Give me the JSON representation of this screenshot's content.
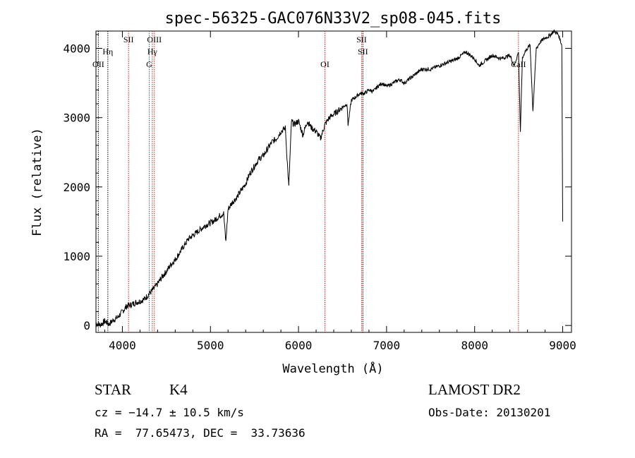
{
  "chart_data": {
    "type": "line",
    "title": "spec-56325-GAC076N33V2_sp08-045.fits",
    "xlabel": "Wavelength (Å)",
    "ylabel": "Flux (relative)",
    "xlim": [
      3700,
      9100
    ],
    "ylim": [
      -100,
      4250
    ],
    "x_ticks": [
      4000,
      5000,
      6000,
      7000,
      8000,
      9000
    ],
    "y_ticks": [
      0,
      1000,
      2000,
      3000,
      4000
    ],
    "grid": false,
    "series": [
      {
        "x": [
          3700,
          3750,
          3800,
          3850,
          3900,
          3950,
          4000,
          4050,
          4100,
          4150,
          4200,
          4250,
          4300,
          4350,
          4400,
          4450,
          4500,
          4550,
          4600,
          4650,
          4700,
          4750,
          4800,
          4850,
          4900,
          4950,
          5000,
          5050,
          5100,
          5150,
          5175,
          5200,
          5250,
          5300,
          5350,
          5400,
          5450,
          5500,
          5550,
          5600,
          5650,
          5700,
          5750,
          5800,
          5850,
          5890,
          5920,
          5950,
          6000,
          6050,
          6100,
          6150,
          6200,
          6250,
          6300,
          6350,
          6400,
          6450,
          6500,
          6550,
          6563,
          6600,
          6650,
          6700,
          6750,
          6800,
          6850,
          6900,
          6950,
          7000,
          7050,
          7100,
          7150,
          7200,
          7300,
          7400,
          7500,
          7600,
          7700,
          7800,
          7900,
          8000,
          8050,
          8100,
          8150,
          8200,
          8300,
          8400,
          8450,
          8498,
          8520,
          8542,
          8570,
          8600,
          8630,
          8662,
          8700,
          8750,
          8800,
          8850,
          8900,
          8950,
          8990,
          9000
        ],
        "y": [
          30,
          10,
          60,
          20,
          80,
          120,
          200,
          280,
          300,
          330,
          350,
          380,
          450,
          520,
          600,
          700,
          780,
          880,
          950,
          1050,
          1150,
          1250,
          1300,
          1350,
          1400,
          1450,
          1480,
          1520,
          1580,
          1620,
          1200,
          1680,
          1780,
          1850,
          1950,
          2050,
          2200,
          2300,
          2400,
          2450,
          2550,
          2650,
          2700,
          2800,
          2850,
          2000,
          2950,
          2900,
          2950,
          2750,
          2950,
          2850,
          2800,
          2700,
          2900,
          3000,
          3050,
          3100,
          3150,
          3200,
          2900,
          3250,
          3300,
          3350,
          3350,
          3400,
          3380,
          3450,
          3500,
          3450,
          3480,
          3520,
          3550,
          3500,
          3600,
          3700,
          3700,
          3750,
          3800,
          3850,
          3950,
          3850,
          3750,
          3800,
          3850,
          3900,
          3850,
          3900,
          3750,
          3950,
          2800,
          3850,
          3950,
          4000,
          4050,
          3100,
          4000,
          4100,
          4150,
          4180,
          4250,
          4200,
          4050,
          1500
        ]
      }
    ],
    "line_labels": [
      {
        "wavelength": 3727,
        "labels": [
          "OII"
        ],
        "style": "black"
      },
      {
        "wavelength": 3835,
        "labels": [
          "Hη"
        ],
        "style": "black"
      },
      {
        "wavelength": 4070,
        "labels": [
          "SII"
        ],
        "style": "red"
      },
      {
        "wavelength": 4305,
        "labels": [
          "G"
        ],
        "style": "red"
      },
      {
        "wavelength": 4340,
        "labels": [
          "Hγ"
        ],
        "style": "red"
      },
      {
        "wavelength": 4363,
        "labels": [
          "OIII"
        ],
        "style": "red"
      },
      {
        "wavelength": 6300,
        "labels": [
          "OI"
        ],
        "style": "red"
      },
      {
        "wavelength": 6716,
        "labels": [
          "SII"
        ],
        "style": "red"
      },
      {
        "wavelength": 6731,
        "labels": [
          "SII"
        ],
        "style": "black"
      },
      {
        "wavelength": 8498,
        "labels": [
          "CaII"
        ],
        "style": "red"
      }
    ],
    "colors": {
      "spectrum": "#000000",
      "red_line": "#b03030",
      "black_line": "#000000"
    }
  },
  "info": {
    "class_label": "STAR",
    "subclass": "K4",
    "survey": "LAMOST DR2",
    "redshift": "cz = −14.7 ± 10.5 km/s",
    "obs_date": "Obs-Date: 20130201",
    "coords": "RA =  77.65473, DEC =  33.73636"
  }
}
